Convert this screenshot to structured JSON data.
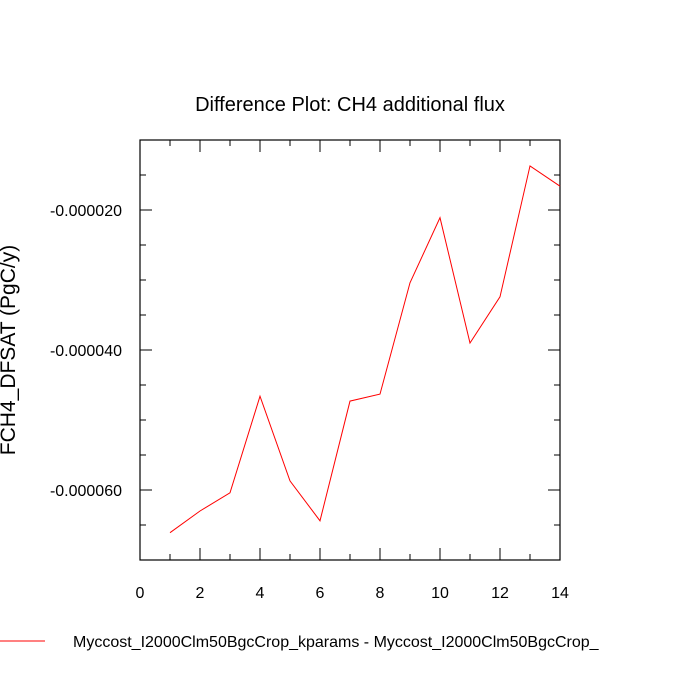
{
  "chart_data": {
    "type": "line",
    "title": "Difference Plot: CH4 additional flux",
    "xlabel": "",
    "ylabel": "FCH4_DFSAT  (PgC/y)",
    "xlim": [
      0,
      14
    ],
    "ylim": [
      -7e-05,
      -1e-05
    ],
    "x_ticks": [
      0,
      2,
      4,
      6,
      8,
      10,
      12,
      14
    ],
    "x_tick_labels": [
      "0",
      "2",
      "4",
      "6",
      "8",
      "10",
      "12",
      "14"
    ],
    "y_ticks": [
      -2e-05,
      -4e-05,
      -6e-05
    ],
    "y_tick_labels": [
      "-0.000020",
      "-0.000040",
      "-0.000060"
    ],
    "grid": false,
    "legend_position": "bottom",
    "series": [
      {
        "name": "Myccost_I2000Clm50BgcCrop_kparams - Myccost_I2000Clm50BgcCrop_",
        "color": "#ff0000",
        "x": [
          1,
          2,
          3,
          4,
          5,
          6,
          7,
          8,
          9,
          10,
          11,
          12,
          13,
          14
        ],
        "values": [
          -6.61e-05,
          -6.3e-05,
          -6.04e-05,
          -4.66e-05,
          -5.87e-05,
          -6.44e-05,
          -4.73e-05,
          -4.63e-05,
          -3.04e-05,
          -2.11e-05,
          -3.9e-05,
          -3.24e-05,
          -1.37e-05,
          -1.66e-05
        ]
      }
    ]
  }
}
